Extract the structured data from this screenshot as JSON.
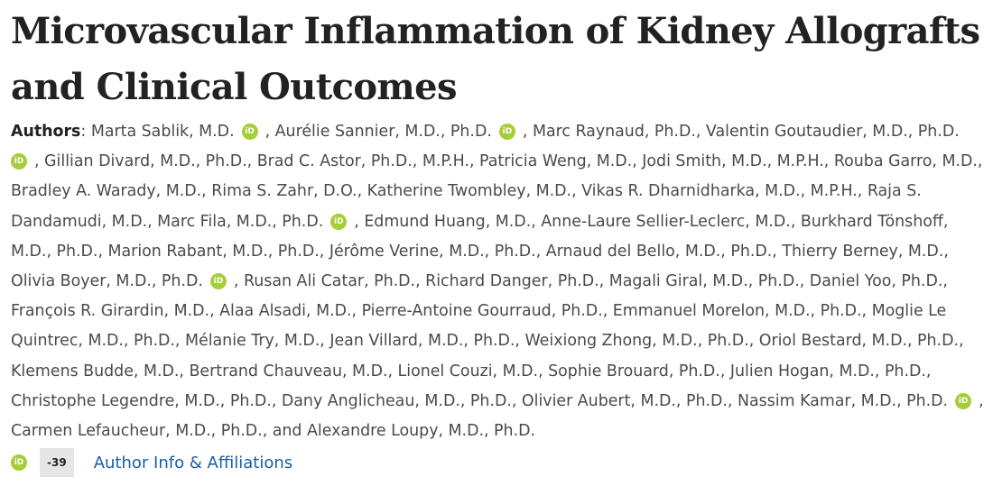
{
  "article": {
    "title_line1": "Microvascular Inflammation of Kidney Allografts",
    "title_line2": "and Clinical Outcomes"
  },
  "authors": {
    "label": "Authors",
    "separator": ": ",
    "orcid_icon_text": "iD",
    "text_segments": [
      "Marta Sablik, M.D.",
      ", Aurélie Sannier, M.D., Ph.D.",
      ", Marc Raynaud, Ph.D., Valentin Goutaudier, M.D., Ph.D.",
      ", Gillian Divard, M.D., Ph.D., Brad C. Astor, Ph.D., M.P.H., Patricia Weng, M.D., Jodi Smith, M.D., M.P.H., Rouba Garro, M.D., Bradley A. Warady, M.D., Rima S. Zahr, D.O., Katherine Twombley, M.D., Vikas R. Dharnidharka, M.D., M.P.H., Raja S. Dandamudi, M.D., Marc Fila, M.D., Ph.D.",
      ", Edmund Huang, M.D., Anne-Laure Sellier-Leclerc, M.D., Burkhard Tönshoff, M.D., Ph.D., Marion Rabant, M.D., Ph.D., Jérôme Verine, M.D., Ph.D., Arnaud del Bello, M.D., Ph.D., Thierry Berney, M.D., Olivia Boyer, M.D., Ph.D.",
      ", Rusan Ali Catar, Ph.D., Richard Danger, Ph.D., Magali Giral, M.D., Ph.D., Daniel Yoo, Ph.D., François R. Girardin, M.D., Alaa Alsadi, M.D., Pierre-Antoine Gourraud, Ph.D., Emmanuel Morelon, M.D., Ph.D., Moglie Le Quintrec, M.D., Ph.D., Mélanie Try, M.D., Jean Villard, M.D., Ph.D., Weixiong Zhong, M.D., Ph.D., Oriol Bestard, M.D., Ph.D., Klemens Budde, M.D., Bertrand Chauveau, M.D., Lionel Couzi, M.D., Sophie Brouard, Ph.D., Julien Hogan, M.D., Ph.D., Christophe Legendre, M.D., Ph.D., Dany Anglicheau, M.D., Ph.D., Olivier Aubert, M.D., Ph.D., Nassim Kamar, M.D., Ph.D.",
      ", Carmen Lefaucheur, M.D., Ph.D., and Alexandre Loupy, M.D., Ph.D."
    ]
  },
  "footer": {
    "count_badge": "-39",
    "affiliations_link": "Author Info & Affiliations"
  },
  "colors": {
    "orcid_green": "#a6ce39",
    "link_blue": "#1a5ea8",
    "title_text": "#222222",
    "body_text": "#4a4a4a"
  }
}
